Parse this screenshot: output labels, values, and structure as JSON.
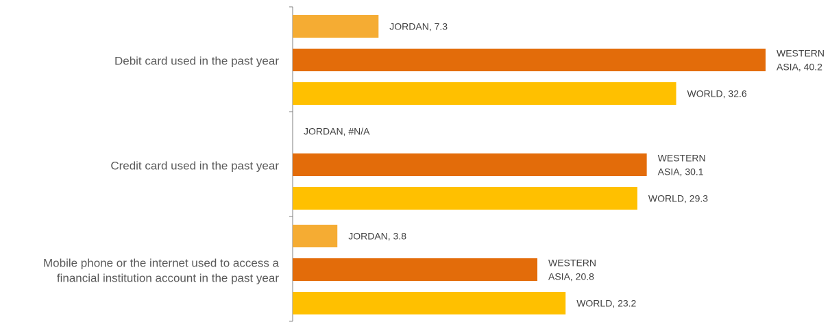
{
  "chart_data": {
    "type": "bar",
    "orientation": "horizontal",
    "categories": [
      [
        "Debit card used in the past year"
      ],
      [
        "Credit card used in the past year"
      ],
      [
        "Mobile phone or the internet used to access a",
        "financial institution account in the past year"
      ]
    ],
    "series": [
      {
        "name": "JORDAN",
        "color": "#f5ac33",
        "values": [
          7.3,
          null,
          3.8
        ],
        "labels": [
          [
            "JORDAN, 7.3"
          ],
          [
            "JORDAN, #N/A"
          ],
          [
            "JORDAN, 3.8"
          ]
        ]
      },
      {
        "name": "WESTERN ASIA",
        "color": "#e36c0a",
        "values": [
          40.2,
          30.1,
          20.8
        ],
        "labels": [
          [
            "WESTERN",
            "ASIA, 40.2"
          ],
          [
            "WESTERN",
            "ASIA, 30.1"
          ],
          [
            "WESTERN",
            "ASIA, 20.8"
          ]
        ]
      },
      {
        "name": "WORLD",
        "color": "#ffc000",
        "values": [
          32.6,
          29.3,
          23.2
        ],
        "labels": [
          [
            "WORLD, 32.6"
          ],
          [
            "WORLD, 29.3"
          ],
          [
            "WORLD, 23.2"
          ]
        ]
      }
    ],
    "xlim": [
      0,
      40.2
    ],
    "grid": false,
    "legend": "none",
    "title": "",
    "xlabel": "",
    "ylabel": ""
  }
}
